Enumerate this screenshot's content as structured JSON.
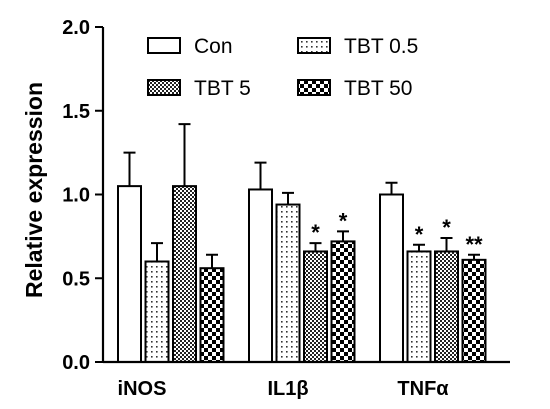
{
  "chart_data": {
    "type": "bar",
    "ylabel": "Relative expression",
    "ylim": [
      0,
      2.0
    ],
    "yticks": [
      "0.0",
      "0.5",
      "1.0",
      "1.5",
      "2.0"
    ],
    "ytick_values": [
      0,
      0.5,
      1.0,
      1.5,
      2.0
    ],
    "categories": [
      "iNOS",
      "IL1β",
      "TNFα"
    ],
    "legend_position": "top",
    "series": [
      {
        "name": "Con",
        "pattern": "white",
        "values": [
          1.05,
          1.03,
          1.0
        ],
        "errors": [
          0.2,
          0.16,
          0.07
        ],
        "significance": [
          "",
          "",
          ""
        ]
      },
      {
        "name": "TBT 0.5",
        "pattern": "dots",
        "values": [
          0.6,
          0.94,
          0.66
        ],
        "errors": [
          0.11,
          0.07,
          0.04
        ],
        "significance": [
          "",
          "",
          "*"
        ]
      },
      {
        "name": "TBT 5",
        "pattern": "checker",
        "values": [
          1.05,
          0.66,
          0.66
        ],
        "errors": [
          0.37,
          0.05,
          0.08
        ],
        "significance": [
          "",
          "*",
          "*"
        ]
      },
      {
        "name": "TBT 50",
        "pattern": "bigchecker",
        "values": [
          0.56,
          0.72,
          0.61
        ],
        "errors": [
          0.08,
          0.06,
          0.03
        ],
        "significance": [
          "",
          "*",
          "**"
        ]
      }
    ]
  }
}
